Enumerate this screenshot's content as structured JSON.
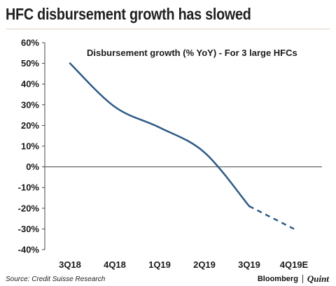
{
  "header": {
    "title": "HFC disbursement growth has slowed"
  },
  "chart_data": {
    "type": "line",
    "title": "Disbursement growth (% YoY) - For 3 large HFCs",
    "categories": [
      "3Q18",
      "4Q18",
      "1Q19",
      "2Q19",
      "3Q19",
      "4Q19E"
    ],
    "y_ticks": [
      "-40%",
      "-30%",
      "-20%",
      "-10%",
      "0%",
      "10%",
      "20%",
      "30%",
      "40%",
      "50%",
      "60%"
    ],
    "ylim": [
      -40,
      60
    ],
    "series": [
      {
        "values": [
          50,
          29,
          19,
          7,
          -19,
          -30
        ],
        "style": "solid-then-dashed",
        "dashed_from_index": 4
      }
    ],
    "line_color": "#2e5a87",
    "axis_color": "#444444",
    "grid": false
  },
  "footer": {
    "source": "Source: Credit Suisse Research",
    "brand_primary": "Bloomberg",
    "brand_secondary": "Quint"
  }
}
